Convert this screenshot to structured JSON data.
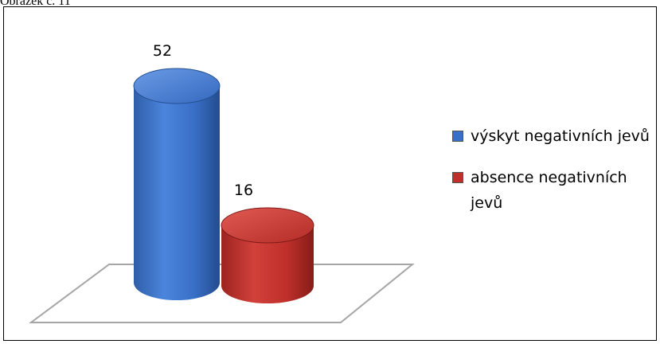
{
  "caption": "Obrázek č. 11",
  "colors": {
    "series1": "#3a6fc8",
    "series2": "#c0302b"
  },
  "chart_data": {
    "type": "bar",
    "style": "3d-cylinder",
    "categories": [
      "výskyt negativních jevů",
      "absence negativních jevů"
    ],
    "values": [
      52,
      16
    ],
    "data_labels": [
      "52",
      "16"
    ],
    "legend": {
      "placement": "right",
      "entries": [
        "výskyt negativních jevů",
        "absence negativních jevů"
      ]
    },
    "grid": false
  }
}
